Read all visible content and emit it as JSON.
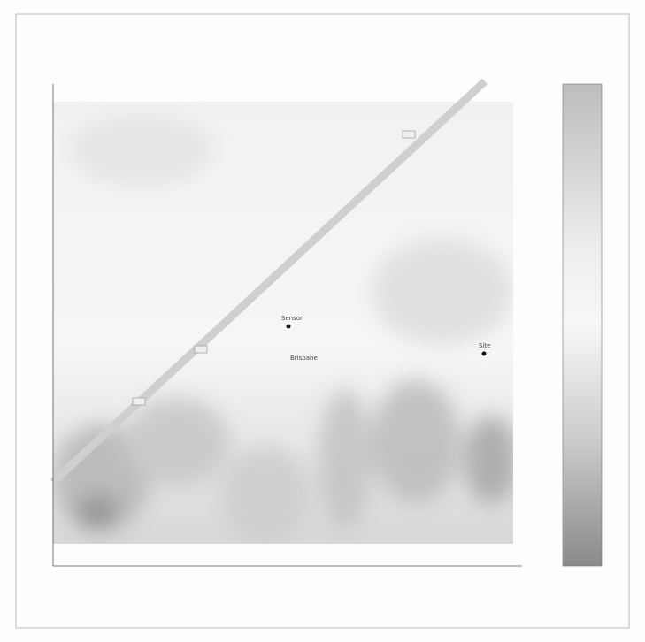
{
  "map": {
    "points": [
      {
        "label": "Sensor"
      },
      {
        "label": "Site"
      }
    ],
    "places": [
      {
        "label": "Brisbane"
      }
    ]
  }
}
